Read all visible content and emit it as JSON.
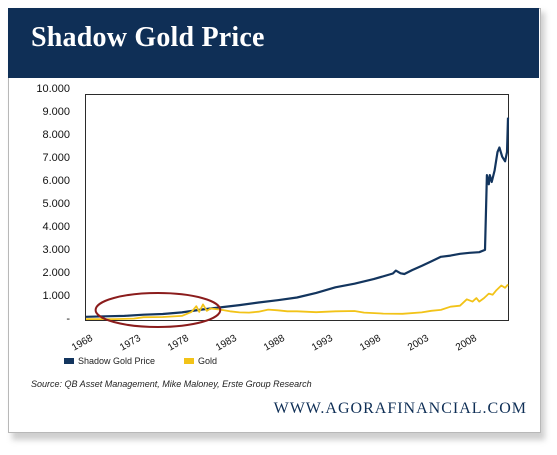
{
  "title": "Shadow Gold Price",
  "source": "Source: QB Asset Management, Mike Maloney, Erste Group Research",
  "footer": "WWW.AGORAFINANCIAL.COM",
  "colors": {
    "header": "#0f2f56",
    "shadow_gold": "#13355e",
    "gold": "#f2c318",
    "highlight": "#8b1c1c"
  },
  "chart_data": {
    "type": "line",
    "title": "Shadow Gold Price",
    "xlim": [
      1968,
      2012
    ],
    "ylim": [
      0,
      10000
    ],
    "yticks": [
      "10.000",
      "9.000",
      "8.000",
      "7.000",
      "6.000",
      "5.000",
      "4.000",
      "3.000",
      "2.000",
      "1.000",
      "-"
    ],
    "xticks": [
      "1968",
      "1973",
      "1978",
      "1983",
      "1988",
      "1993",
      "1998",
      "2003",
      "2008"
    ],
    "legend_position": "bottom-left",
    "grid": false,
    "highlight_ellipse_range": [
      1969,
      1982
    ],
    "series": [
      {
        "name": "Shadow Gold Price",
        "color": "#13355e",
        "points": [
          [
            1968,
            140
          ],
          [
            1970,
            160
          ],
          [
            1972,
            180
          ],
          [
            1974,
            230
          ],
          [
            1976,
            260
          ],
          [
            1978,
            330
          ],
          [
            1980,
            450
          ],
          [
            1982,
            550
          ],
          [
            1984,
            650
          ],
          [
            1986,
            760
          ],
          [
            1988,
            860
          ],
          [
            1990,
            980
          ],
          [
            1992,
            1180
          ],
          [
            1994,
            1420
          ],
          [
            1996,
            1580
          ],
          [
            1998,
            1780
          ],
          [
            2000,
            2020
          ],
          [
            2000.3,
            2150
          ],
          [
            2000.8,
            2030
          ],
          [
            2001.2,
            2000
          ],
          [
            2002,
            2170
          ],
          [
            2003,
            2350
          ],
          [
            2004,
            2550
          ],
          [
            2005,
            2750
          ],
          [
            2006,
            2800
          ],
          [
            2007,
            2880
          ],
          [
            2008,
            2920
          ],
          [
            2009,
            2950
          ],
          [
            2009.6,
            3050
          ],
          [
            2009.8,
            6300
          ],
          [
            2010.0,
            5900
          ],
          [
            2010.1,
            6300
          ],
          [
            2010.3,
            6000
          ],
          [
            2010.6,
            6500
          ],
          [
            2010.9,
            7300
          ],
          [
            2011.1,
            7500
          ],
          [
            2011.4,
            7100
          ],
          [
            2011.7,
            6900
          ],
          [
            2011.9,
            7300
          ],
          [
            2012.0,
            8800
          ]
        ]
      },
      {
        "name": "Gold",
        "color": "#f2c318",
        "points": [
          [
            1968,
            40
          ],
          [
            1971,
            40
          ],
          [
            1973,
            60
          ],
          [
            1974,
            120
          ],
          [
            1976,
            130
          ],
          [
            1978,
            180
          ],
          [
            1979,
            350
          ],
          [
            1979.5,
            600
          ],
          [
            1979.8,
            350
          ],
          [
            1980.2,
            680
          ],
          [
            1980.6,
            400
          ],
          [
            1981,
            500
          ],
          [
            1982,
            450
          ],
          [
            1983,
            380
          ],
          [
            1984,
            330
          ],
          [
            1985,
            320
          ],
          [
            1986,
            360
          ],
          [
            1987,
            450
          ],
          [
            1988,
            420
          ],
          [
            1989,
            380
          ],
          [
            1990,
            380
          ],
          [
            1992,
            340
          ],
          [
            1994,
            380
          ],
          [
            1996,
            390
          ],
          [
            1997,
            320
          ],
          [
            1999,
            280
          ],
          [
            2001,
            270
          ],
          [
            2003,
            330
          ],
          [
            2004,
            400
          ],
          [
            2005,
            440
          ],
          [
            2006,
            580
          ],
          [
            2007,
            620
          ],
          [
            2007.7,
            900
          ],
          [
            2008.3,
            800
          ],
          [
            2008.7,
            950
          ],
          [
            2009,
            800
          ],
          [
            2009.5,
            950
          ],
          [
            2010,
            1150
          ],
          [
            2010.4,
            1100
          ],
          [
            2010.8,
            1300
          ],
          [
            2011.3,
            1500
          ],
          [
            2011.7,
            1400
          ],
          [
            2012,
            1550
          ]
        ]
      }
    ]
  }
}
